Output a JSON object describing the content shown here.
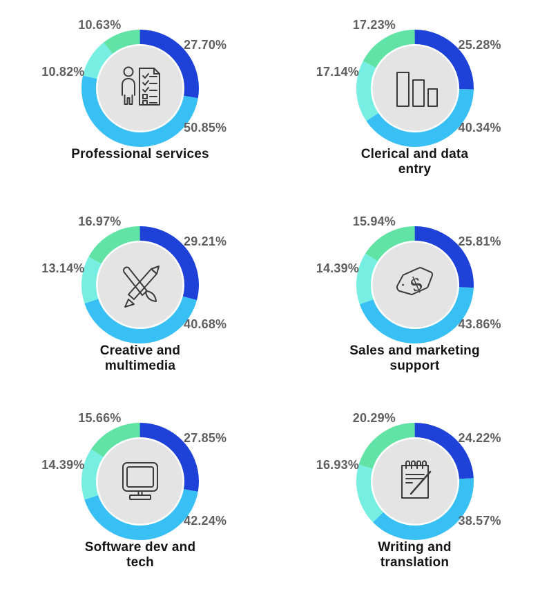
{
  "background_color": "#ffffff",
  "label_color": "#5f5f5f",
  "title_color": "#141414",
  "center_circle_color": "#e4e4e4",
  "icon_stroke_color": "#3a3a3a",
  "segment_colors": [
    "#1e42d8",
    "#38bff4",
    "#76eee1",
    "#60e3a5"
  ],
  "chart_data": [
    {
      "type": "pie",
      "style": "donut",
      "title": "Professional services",
      "title_lines": [
        "Professional services"
      ],
      "icon": "person-checklist-icon",
      "segments": [
        {
          "value": 27.7,
          "label": "27.70%",
          "color": "#1e42d8",
          "label_position": "top-right"
        },
        {
          "value": 50.85,
          "label": "50.85%",
          "color": "#38bff4",
          "label_position": "bottom-right"
        },
        {
          "value": 10.82,
          "label": "10.82%",
          "color": "#76eee1",
          "label_position": "mid-left"
        },
        {
          "value": 10.63,
          "label": "10.63%",
          "color": "#60e3a5",
          "label_position": "top-left"
        }
      ]
    },
    {
      "type": "pie",
      "style": "donut",
      "title": "Clerical and data entry",
      "title_lines": [
        "Clerical and data",
        "entry"
      ],
      "icon": "bar-chart-icon",
      "segments": [
        {
          "value": 25.28,
          "label": "25.28%",
          "color": "#1e42d8",
          "label_position": "top-right"
        },
        {
          "value": 40.34,
          "label": "40.34%",
          "color": "#38bff4",
          "label_position": "bottom-right"
        },
        {
          "value": 17.14,
          "label": "17.14%",
          "color": "#76eee1",
          "label_position": "mid-left"
        },
        {
          "value": 17.23,
          "label": "17.23%",
          "color": "#60e3a5",
          "label_position": "top-left"
        }
      ]
    },
    {
      "type": "pie",
      "style": "donut",
      "title": "Creative and multimedia",
      "title_lines": [
        "Creative and",
        "multimedia"
      ],
      "icon": "pencil-brush-icon",
      "segments": [
        {
          "value": 29.21,
          "label": "29.21%",
          "color": "#1e42d8",
          "label_position": "top-right"
        },
        {
          "value": 40.68,
          "label": "40.68%",
          "color": "#38bff4",
          "label_position": "bottom-right"
        },
        {
          "value": 13.14,
          "label": "13.14%",
          "color": "#76eee1",
          "label_position": "mid-left"
        },
        {
          "value": 16.97,
          "label": "16.97%",
          "color": "#60e3a5",
          "label_position": "top-left"
        }
      ]
    },
    {
      "type": "pie",
      "style": "donut",
      "title": "Sales and marketing support",
      "title_lines": [
        "Sales and marketing",
        "support"
      ],
      "icon": "price-tag-icon",
      "segments": [
        {
          "value": 25.81,
          "label": "25.81%",
          "color": "#1e42d8",
          "label_position": "top-right"
        },
        {
          "value": 43.86,
          "label": "43.86%",
          "color": "#38bff4",
          "label_position": "bottom-right"
        },
        {
          "value": 14.39,
          "label": "14.39%",
          "color": "#76eee1",
          "label_position": "mid-left"
        },
        {
          "value": 15.94,
          "label": "15.94%",
          "color": "#60e3a5",
          "label_position": "top-left"
        }
      ]
    },
    {
      "type": "pie",
      "style": "donut",
      "title": "Software dev and tech",
      "title_lines": [
        "Software dev and",
        "tech"
      ],
      "icon": "monitor-icon",
      "segments": [
        {
          "value": 27.85,
          "label": "27.85%",
          "color": "#1e42d8",
          "label_position": "top-right"
        },
        {
          "value": 42.24,
          "label": "42.24%",
          "color": "#38bff4",
          "label_position": "bottom-right"
        },
        {
          "value": 14.39,
          "label": "14.39%",
          "color": "#76eee1",
          "label_position": "mid-left"
        },
        {
          "value": 15.66,
          "label": "15.66%",
          "color": "#60e3a5",
          "label_position": "top-left"
        }
      ]
    },
    {
      "type": "pie",
      "style": "donut",
      "title": "Writing and translation",
      "title_lines": [
        "Writing and",
        "translation"
      ],
      "icon": "notepad-icon",
      "segments": [
        {
          "value": 24.22,
          "label": "24.22%",
          "color": "#1e42d8",
          "label_position": "top-right"
        },
        {
          "value": 38.57,
          "label": "38.57%",
          "color": "#38bff4",
          "label_position": "bottom-right"
        },
        {
          "value": 16.93,
          "label": "16.93%",
          "color": "#76eee1",
          "label_position": "mid-left"
        },
        {
          "value": 20.29,
          "label": "20.29%",
          "color": "#60e3a5",
          "label_position": "top-left"
        }
      ]
    }
  ]
}
